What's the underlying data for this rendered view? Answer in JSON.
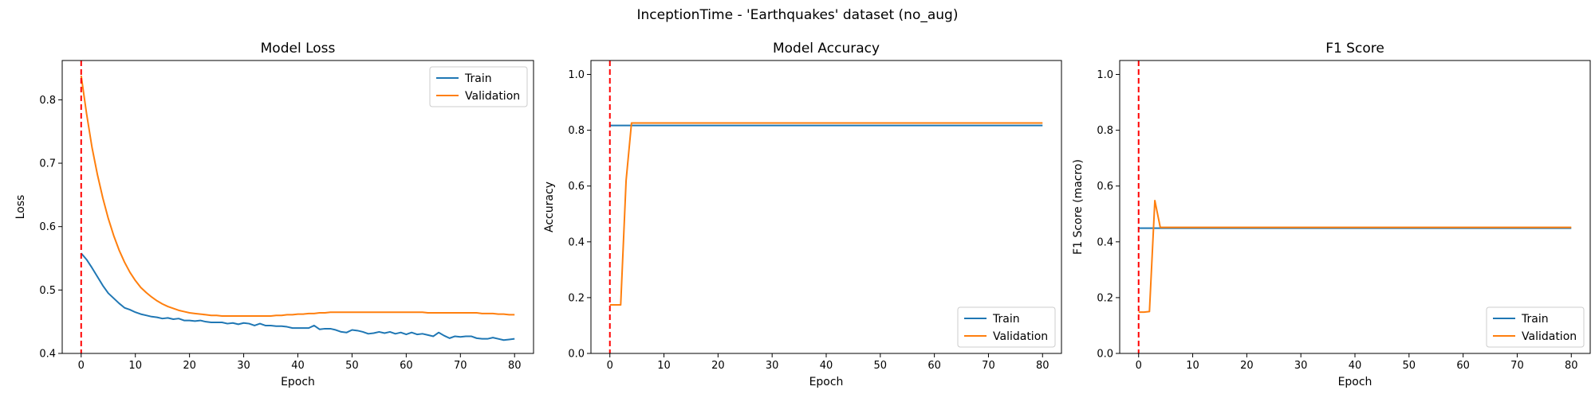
{
  "suptitle": "InceptionTime - 'Earthquakes' dataset (no_aug)",
  "colors": {
    "train": "#1f77b4",
    "validation": "#ff7f0e",
    "vline": "#ff0000"
  },
  "chart_data": [
    {
      "type": "line",
      "title": "Model Loss",
      "xlabel": "Epoch",
      "ylabel": "Loss",
      "xlim": [
        -3.5,
        83.5
      ],
      "ylim": [
        0.4,
        0.862
      ],
      "xticks": [
        0,
        10,
        20,
        30,
        40,
        50,
        60,
        70,
        80
      ],
      "yticks": [
        0.4,
        0.5,
        0.6,
        0.7,
        0.8
      ],
      "ytick_labels": [
        "0.4",
        "0.5",
        "0.6",
        "0.7",
        "0.8"
      ],
      "vline_x": 0,
      "legend": "upper right",
      "series": [
        {
          "name": "Train",
          "key": "train",
          "x": [
            0,
            1,
            2,
            3,
            4,
            5,
            6,
            7,
            8,
            9,
            10,
            11,
            12,
            13,
            14,
            15,
            16,
            17,
            18,
            19,
            20,
            21,
            22,
            23,
            24,
            25,
            26,
            27,
            28,
            29,
            30,
            31,
            32,
            33,
            34,
            35,
            36,
            37,
            38,
            39,
            40,
            41,
            42,
            43,
            44,
            45,
            46,
            47,
            48,
            49,
            50,
            51,
            52,
            53,
            54,
            55,
            56,
            57,
            58,
            59,
            60,
            61,
            62,
            63,
            64,
            65,
            66,
            67,
            68,
            69,
            70,
            71,
            72,
            73,
            74,
            75,
            76,
            77,
            78,
            79,
            80
          ],
          "y": [
            0.558,
            0.548,
            0.535,
            0.521,
            0.507,
            0.495,
            0.487,
            0.479,
            0.472,
            0.469,
            0.465,
            0.462,
            0.46,
            0.458,
            0.457,
            0.455,
            0.456,
            0.454,
            0.455,
            0.452,
            0.452,
            0.451,
            0.452,
            0.45,
            0.449,
            0.449,
            0.449,
            0.447,
            0.448,
            0.446,
            0.448,
            0.447,
            0.444,
            0.447,
            0.444,
            0.444,
            0.443,
            0.443,
            0.442,
            0.44,
            0.44,
            0.44,
            0.44,
            0.444,
            0.438,
            0.439,
            0.439,
            0.437,
            0.434,
            0.433,
            0.437,
            0.436,
            0.434,
            0.431,
            0.432,
            0.434,
            0.432,
            0.434,
            0.431,
            0.433,
            0.43,
            0.433,
            0.43,
            0.431,
            0.429,
            0.427,
            0.433,
            0.428,
            0.424,
            0.427,
            0.426,
            0.427,
            0.427,
            0.424,
            0.423,
            0.423,
            0.425,
            0.423,
            0.421,
            0.422,
            0.423
          ]
        },
        {
          "name": "Validation",
          "key": "validation",
          "x": [
            0,
            1,
            2,
            3,
            4,
            5,
            6,
            7,
            8,
            9,
            10,
            11,
            12,
            13,
            14,
            15,
            16,
            17,
            18,
            19,
            20,
            21,
            22,
            23,
            24,
            25,
            26,
            27,
            28,
            29,
            30,
            31,
            32,
            33,
            34,
            35,
            36,
            37,
            38,
            39,
            40,
            41,
            42,
            43,
            44,
            45,
            46,
            47,
            48,
            49,
            50,
            51,
            52,
            53,
            54,
            55,
            56,
            57,
            58,
            59,
            60,
            61,
            62,
            63,
            64,
            65,
            66,
            67,
            68,
            69,
            70,
            71,
            72,
            73,
            74,
            75,
            76,
            77,
            78,
            79,
            80
          ],
          "y": [
            0.838,
            0.778,
            0.725,
            0.682,
            0.645,
            0.613,
            0.586,
            0.563,
            0.544,
            0.528,
            0.515,
            0.504,
            0.496,
            0.489,
            0.483,
            0.478,
            0.474,
            0.471,
            0.468,
            0.466,
            0.464,
            0.463,
            0.462,
            0.461,
            0.46,
            0.46,
            0.459,
            0.459,
            0.459,
            0.459,
            0.459,
            0.459,
            0.459,
            0.459,
            0.459,
            0.459,
            0.46,
            0.46,
            0.461,
            0.461,
            0.462,
            0.462,
            0.463,
            0.463,
            0.464,
            0.464,
            0.465,
            0.465,
            0.465,
            0.465,
            0.465,
            0.465,
            0.465,
            0.465,
            0.465,
            0.465,
            0.465,
            0.465,
            0.465,
            0.465,
            0.465,
            0.465,
            0.465,
            0.465,
            0.464,
            0.464,
            0.464,
            0.464,
            0.464,
            0.464,
            0.464,
            0.464,
            0.464,
            0.464,
            0.463,
            0.463,
            0.463,
            0.462,
            0.462,
            0.461,
            0.461
          ]
        }
      ]
    },
    {
      "type": "line",
      "title": "Model Accuracy",
      "xlabel": "Epoch",
      "ylabel": "Accuracy",
      "xlim": [
        -3.5,
        83.5
      ],
      "ylim": [
        0.0,
        1.05
      ],
      "xticks": [
        0,
        10,
        20,
        30,
        40,
        50,
        60,
        70,
        80
      ],
      "yticks": [
        0.0,
        0.2,
        0.4,
        0.6,
        0.8,
        1.0
      ],
      "ytick_labels": [
        "0.0",
        "0.2",
        "0.4",
        "0.6",
        "0.8",
        "1.0"
      ],
      "vline_x": 0,
      "legend": "lower right",
      "series": [
        {
          "name": "Train",
          "key": "train",
          "x": [
            0,
            80
          ],
          "y": [
            0.817,
            0.817
          ]
        },
        {
          "name": "Validation",
          "key": "validation",
          "x": [
            0,
            1,
            2,
            3,
            4,
            80
          ],
          "y": [
            0.174,
            0.174,
            0.174,
            0.62,
            0.826,
            0.826
          ]
        }
      ]
    },
    {
      "type": "line",
      "title": "F1 Score",
      "xlabel": "Epoch",
      "ylabel": "F1 Score (macro)",
      "xlim": [
        -3.5,
        83.5
      ],
      "ylim": [
        0.0,
        1.05
      ],
      "xticks": [
        0,
        10,
        20,
        30,
        40,
        50,
        60,
        70,
        80
      ],
      "yticks": [
        0.0,
        0.2,
        0.4,
        0.6,
        0.8,
        1.0
      ],
      "ytick_labels": [
        "0.0",
        "0.2",
        "0.4",
        "0.6",
        "0.8",
        "1.0"
      ],
      "vline_x": 0,
      "legend": "lower right",
      "series": [
        {
          "name": "Train",
          "key": "train",
          "x": [
            0,
            80
          ],
          "y": [
            0.449,
            0.449
          ]
        },
        {
          "name": "Validation",
          "key": "validation",
          "x": [
            0,
            1,
            2,
            3,
            4,
            80
          ],
          "y": [
            0.148,
            0.148,
            0.15,
            0.548,
            0.452,
            0.452
          ]
        }
      ]
    }
  ]
}
